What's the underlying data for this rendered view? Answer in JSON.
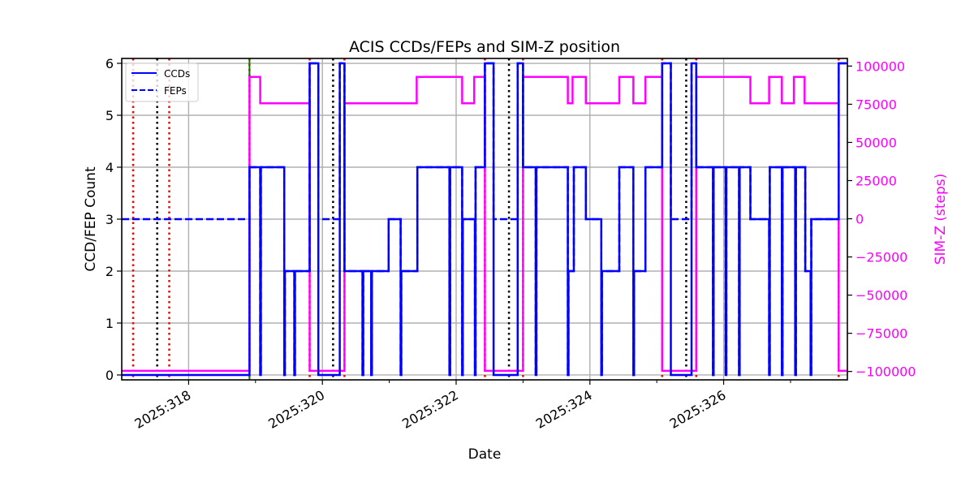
{
  "chart_data": {
    "type": "line",
    "title": "ACIS CCDs/FEPs and SIM-Z position",
    "xlabel": "Date",
    "ylabel": "CCD/FEP Count",
    "y2label": "SIM-Z (steps)",
    "xlim": [
      317.0,
      327.85
    ],
    "ylim": [
      -0.094,
      6.094
    ],
    "y2lim": [
      -105500,
      105000
    ],
    "x_ticks": [
      318,
      320,
      322,
      324,
      326
    ],
    "x_tick_labels": [
      "2025:318",
      "2025:320",
      "2025:322",
      "2025:324",
      "2025:326"
    ],
    "x_minor_ticks": [
      319,
      321,
      323,
      325,
      327
    ],
    "y_ticks": [
      0,
      1,
      2,
      3,
      4,
      5,
      6
    ],
    "y_tick_labels": [
      "0",
      "1",
      "2",
      "3",
      "4",
      "5",
      "6"
    ],
    "y2_ticks": [
      -100000,
      -75000,
      -50000,
      -25000,
      0,
      25000,
      50000,
      75000,
      100000
    ],
    "y2_tick_labels": [
      "−100000",
      "−75000",
      "−50000",
      "−25000",
      "0",
      "25000",
      "50000",
      "75000",
      "100000"
    ],
    "grid": true,
    "legend": {
      "placement": "top-left",
      "entries": [
        "CCDs",
        "FEPs"
      ]
    },
    "colors": {
      "ccd": "#0000ff",
      "fep": "#0000ff",
      "simz": "#ff00ff",
      "red_line": "#ff0000",
      "black_line": "#000000",
      "green_line": "#008000"
    },
    "series": [
      {
        "name": "CCDs",
        "style": "solid",
        "axis": "left",
        "steps": [
          [
            317.0,
            0
          ],
          [
            318.91,
            4
          ],
          [
            319.07,
            0
          ],
          [
            319.08,
            4
          ],
          [
            319.43,
            0
          ],
          [
            319.44,
            2
          ],
          [
            319.58,
            0
          ],
          [
            319.59,
            2
          ],
          [
            319.81,
            6
          ],
          [
            319.94,
            0
          ],
          [
            320.26,
            6
          ],
          [
            320.33,
            2
          ],
          [
            320.6,
            0
          ],
          [
            320.61,
            2
          ],
          [
            320.73,
            0
          ],
          [
            320.74,
            2
          ],
          [
            320.99,
            3
          ],
          [
            321.17,
            0
          ],
          [
            321.18,
            2
          ],
          [
            321.42,
            4
          ],
          [
            321.9,
            0
          ],
          [
            321.91,
            4
          ],
          [
            322.09,
            0
          ],
          [
            322.1,
            3
          ],
          [
            322.28,
            0
          ],
          [
            322.29,
            4
          ],
          [
            322.43,
            6
          ],
          [
            322.56,
            0
          ],
          [
            322.92,
            6
          ],
          [
            323.0,
            4
          ],
          [
            323.19,
            0
          ],
          [
            323.2,
            4
          ],
          [
            323.67,
            0
          ],
          [
            323.68,
            2
          ],
          [
            323.76,
            4
          ],
          [
            323.94,
            3
          ],
          [
            324.17,
            0
          ],
          [
            324.18,
            2
          ],
          [
            324.44,
            4
          ],
          [
            324.65,
            0
          ],
          [
            324.66,
            2
          ],
          [
            324.83,
            4
          ],
          [
            325.08,
            6
          ],
          [
            325.21,
            0
          ],
          [
            325.52,
            6
          ],
          [
            325.59,
            4
          ],
          [
            325.84,
            0
          ],
          [
            325.85,
            4
          ],
          [
            326.03,
            0
          ],
          [
            326.04,
            4
          ],
          [
            326.23,
            0
          ],
          [
            326.24,
            4
          ],
          [
            326.4,
            3
          ],
          [
            326.68,
            0
          ],
          [
            326.69,
            4
          ],
          [
            326.87,
            0
          ],
          [
            326.88,
            4
          ],
          [
            327.07,
            0
          ],
          [
            327.08,
            4
          ],
          [
            327.22,
            2
          ],
          [
            327.3,
            0
          ],
          [
            327.31,
            3
          ],
          [
            327.72,
            6
          ],
          [
            327.85,
            6
          ]
        ]
      },
      {
        "name": "FEPs",
        "style": "dashed",
        "axis": "left",
        "steps": [
          [
            317.0,
            3
          ],
          [
            318.91,
            4
          ],
          [
            319.07,
            0
          ],
          [
            319.08,
            4
          ],
          [
            319.43,
            0
          ],
          [
            319.44,
            2
          ],
          [
            319.58,
            0
          ],
          [
            319.59,
            2
          ],
          [
            319.81,
            6
          ],
          [
            319.94,
            3
          ],
          [
            320.26,
            6
          ],
          [
            320.33,
            2
          ],
          [
            320.6,
            0
          ],
          [
            320.61,
            2
          ],
          [
            320.73,
            0
          ],
          [
            320.74,
            2
          ],
          [
            320.99,
            3
          ],
          [
            321.17,
            0
          ],
          [
            321.18,
            2
          ],
          [
            321.42,
            4
          ],
          [
            321.9,
            0
          ],
          [
            321.91,
            4
          ],
          [
            322.09,
            0
          ],
          [
            322.1,
            3
          ],
          [
            322.28,
            0
          ],
          [
            322.29,
            4
          ],
          [
            322.43,
            6
          ],
          [
            322.56,
            3
          ],
          [
            322.92,
            6
          ],
          [
            323.0,
            4
          ],
          [
            323.19,
            0
          ],
          [
            323.2,
            4
          ],
          [
            323.67,
            0
          ],
          [
            323.68,
            2
          ],
          [
            323.76,
            4
          ],
          [
            323.94,
            3
          ],
          [
            324.17,
            0
          ],
          [
            324.18,
            2
          ],
          [
            324.44,
            4
          ],
          [
            324.65,
            0
          ],
          [
            324.66,
            2
          ],
          [
            324.83,
            4
          ],
          [
            325.08,
            6
          ],
          [
            325.21,
            3
          ],
          [
            325.52,
            6
          ],
          [
            325.59,
            4
          ],
          [
            325.84,
            0
          ],
          [
            325.85,
            4
          ],
          [
            326.03,
            0
          ],
          [
            326.04,
            4
          ],
          [
            326.23,
            0
          ],
          [
            326.24,
            4
          ],
          [
            326.4,
            3
          ],
          [
            326.68,
            0
          ],
          [
            326.69,
            4
          ],
          [
            326.87,
            0
          ],
          [
            326.88,
            4
          ],
          [
            327.07,
            0
          ],
          [
            327.08,
            4
          ],
          [
            327.22,
            2
          ],
          [
            327.3,
            0
          ],
          [
            327.31,
            3
          ],
          [
            327.72,
            6
          ],
          [
            327.85,
            6
          ]
        ]
      },
      {
        "name": "SIM-Z",
        "style": "solid",
        "axis": "right",
        "steps": [
          [
            317.0,
            -99616
          ],
          [
            318.91,
            92905
          ],
          [
            319.07,
            75620
          ],
          [
            319.81,
            -99616
          ],
          [
            320.33,
            75620
          ],
          [
            321.41,
            92905
          ],
          [
            322.09,
            75620
          ],
          [
            322.27,
            92905
          ],
          [
            322.43,
            -99616
          ],
          [
            323.0,
            92905
          ],
          [
            323.67,
            75620
          ],
          [
            323.74,
            92905
          ],
          [
            323.94,
            75620
          ],
          [
            324.44,
            92905
          ],
          [
            324.65,
            75620
          ],
          [
            324.83,
            92905
          ],
          [
            325.08,
            -99616
          ],
          [
            325.59,
            92905
          ],
          [
            326.4,
            75620
          ],
          [
            326.68,
            92905
          ],
          [
            326.87,
            75620
          ],
          [
            327.05,
            92905
          ],
          [
            327.21,
            75620
          ],
          [
            327.72,
            -99616
          ],
          [
            327.85,
            -99616
          ]
        ]
      }
    ],
    "vlines": {
      "red_dotted": [
        317.17,
        317.71,
        318.91,
        319.81,
        320.33,
        322.43,
        323.0,
        325.08,
        325.59,
        327.72
      ],
      "black_dotted": [
        317.53,
        320.16,
        322.79,
        325.44
      ],
      "green_solid": [
        318.91
      ]
    }
  }
}
